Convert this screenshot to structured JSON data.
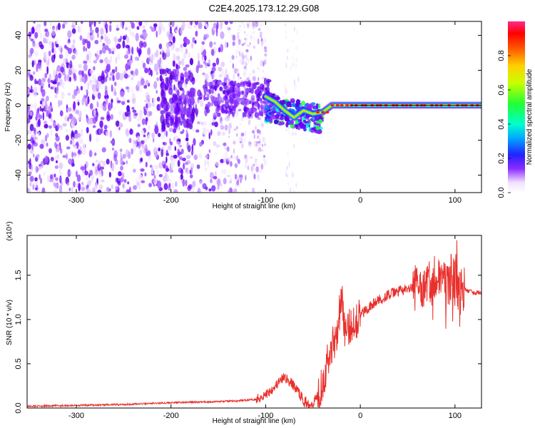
{
  "title": "C2E4.2025.173.12.29.G08",
  "chart_data": [
    {
      "type": "heatmap",
      "xlabel": "Height of straight line (km)",
      "ylabel": "Frequency (Hz)",
      "xlim": [
        -352,
        128
      ],
      "ylim": [
        -50,
        48
      ],
      "x_ticks": [
        -300,
        -200,
        -100,
        0,
        100
      ],
      "y_ticks": [
        -40,
        -20,
        0,
        20,
        40
      ],
      "colorbar": {
        "label": "Normalized spectral amplitude",
        "range": [
          0,
          1
        ],
        "ticks": [
          0.0,
          0.2,
          0.4,
          0.6,
          0.8
        ],
        "tick_labels": [
          "0.0",
          "0.2",
          "0.4",
          "0.6",
          "0.8"
        ]
      },
      "ridge_points": [
        {
          "x": -100,
          "y": 5
        },
        {
          "x": -90,
          "y": 2
        },
        {
          "x": -80,
          "y": -3
        },
        {
          "x": -70,
          "y": -7
        },
        {
          "x": -60,
          "y": -3
        },
        {
          "x": -50,
          "y": -5
        },
        {
          "x": -40,
          "y": -4
        },
        {
          "x": -30,
          "y": 0
        },
        {
          "x": -20,
          "y": 0
        },
        {
          "x": -10,
          "y": 0
        },
        {
          "x": 0,
          "y": 0
        },
        {
          "x": 50,
          "y": 0
        },
        {
          "x": 100,
          "y": 0
        },
        {
          "x": 128,
          "y": 0
        }
      ]
    },
    {
      "type": "line",
      "xlabel": "Height of straight line (km)",
      "ylabel": "SNR (10 * v/v)",
      "y_multiplier": "(x10⁴)",
      "xlim": [
        -352,
        128
      ],
      "ylim": [
        0,
        1.95
      ],
      "x_ticks": [
        -300,
        -200,
        -100,
        0,
        100
      ],
      "y_ticks": [
        0.0,
        0.5,
        1.0,
        1.5
      ],
      "y_tick_labels": [
        "0.0",
        "0.5",
        "1.0",
        "1.5"
      ],
      "series": [
        {
          "color": "#e8302c",
          "points": [
            [
              -352,
              0.02
            ],
            [
              -300,
              0.03
            ],
            [
              -250,
              0.04
            ],
            [
              -200,
              0.06
            ],
            [
              -160,
              0.07
            ],
            [
              -130,
              0.08
            ],
            [
              -110,
              0.1
            ],
            [
              -100,
              0.15
            ],
            [
              -90,
              0.25
            ],
            [
              -80,
              0.35
            ],
            [
              -75,
              0.3
            ],
            [
              -70,
              0.25
            ],
            [
              -65,
              0.18
            ],
            [
              -60,
              0.08
            ],
            [
              -55,
              0.05
            ],
            [
              -50,
              0.06
            ],
            [
              -45,
              0.15
            ],
            [
              -40,
              0.3
            ],
            [
              -35,
              0.5
            ],
            [
              -30,
              0.7
            ],
            [
              -25,
              0.85
            ],
            [
              -20,
              1.25
            ],
            [
              -15,
              0.8
            ],
            [
              -10,
              0.95
            ],
            [
              -5,
              1.0
            ],
            [
              0,
              1.05
            ],
            [
              10,
              1.15
            ],
            [
              20,
              1.22
            ],
            [
              30,
              1.28
            ],
            [
              40,
              1.32
            ],
            [
              50,
              1.34
            ],
            [
              60,
              1.35
            ],
            [
              70,
              1.4
            ],
            [
              80,
              1.45
            ],
            [
              90,
              1.38
            ],
            [
              100,
              1.4
            ],
            [
              105,
              1.32
            ],
            [
              110,
              1.34
            ],
            [
              120,
              1.3
            ],
            [
              128,
              1.3
            ]
          ]
        }
      ]
    }
  ]
}
